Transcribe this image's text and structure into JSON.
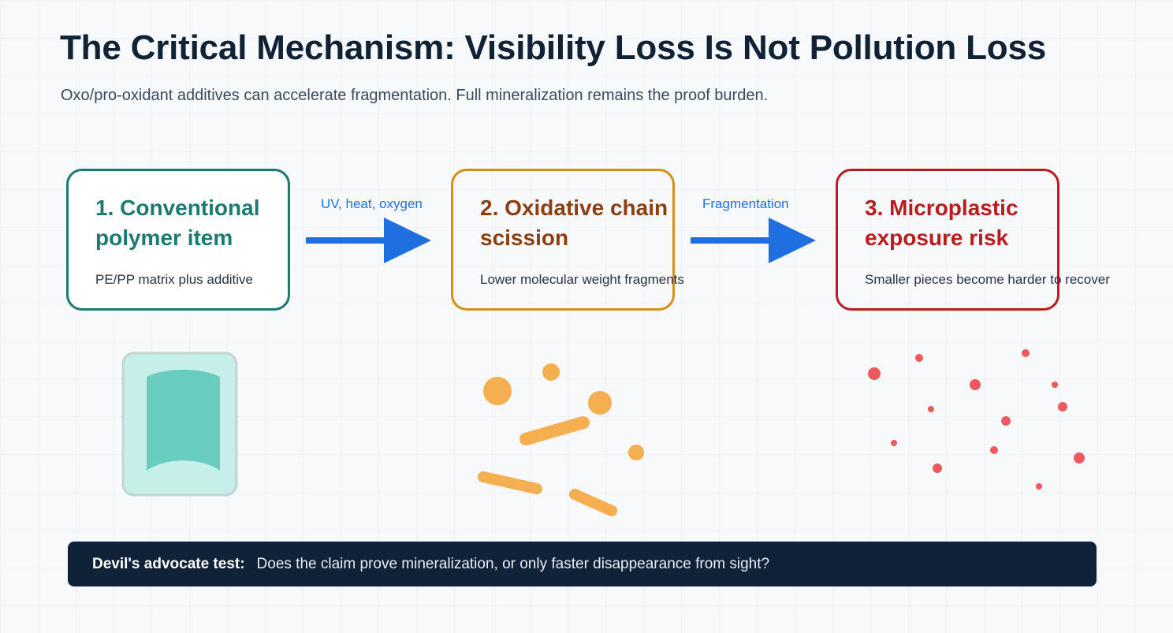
{
  "header": {
    "title": "The Critical Mechanism: Visibility Loss Is Not Pollution Loss",
    "subtitle": "Oxo/pro-oxidant additives can accelerate fragmentation. Full mineralization remains the proof burden."
  },
  "steps": [
    {
      "title": "1. Conventional polymer item",
      "description": "PE/PP matrix plus additive",
      "color": "#1c7a70"
    },
    {
      "title": "2. Oxidative chain scission",
      "description": "Lower molecular weight fragments",
      "color": "#8b3f10"
    },
    {
      "title": "3. Microplastic exposure risk",
      "description": "Smaller pieces become harder to recover",
      "color": "#b91c1c"
    }
  ],
  "arrows": [
    {
      "label": "UV, heat, oxygen",
      "color": "#1f6fe0"
    },
    {
      "label": "Fragmentation",
      "color": "#1f6fe0"
    }
  ],
  "callout": {
    "label": "Devil's advocate test:",
    "text": "Does the claim prove mineralization, or only faster disappearance from sight?"
  },
  "illustrations": {
    "item_icon": "plastic-sheet-icon",
    "fragments_icon": "fragments-icon",
    "microplastics_icon": "microplastic-particles-icon",
    "colors": {
      "item": "#68ccbf",
      "fragments": "#f5ae50",
      "particles": "#ec5a5e"
    }
  }
}
